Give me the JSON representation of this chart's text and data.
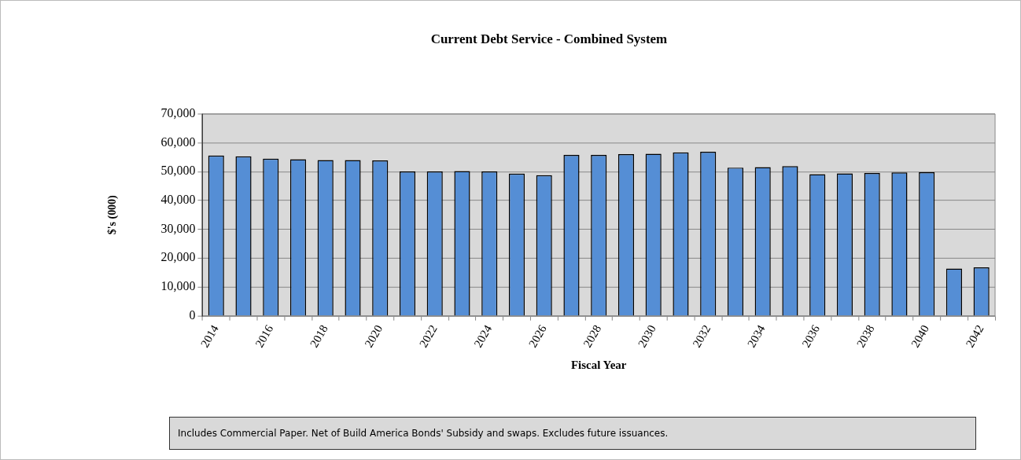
{
  "chart_data": {
    "type": "bar",
    "title": "Current Debt Service - Combined System",
    "xlabel": "Fiscal Year",
    "ylabel": "$'s (000)",
    "categories": [
      "2014",
      null,
      "2016",
      null,
      "2018",
      null,
      "2020",
      null,
      "2022",
      null,
      "2024",
      null,
      "2026",
      null,
      "2028",
      null,
      "2030",
      null,
      "2032",
      null,
      "2034",
      null,
      "2036",
      null,
      "2038",
      null,
      "2040",
      null,
      "2042"
    ],
    "values": [
      55600,
      55300,
      54500,
      54300,
      54000,
      54000,
      53900,
      50100,
      50100,
      50200,
      50100,
      49300,
      48800,
      55800,
      55800,
      56100,
      56200,
      56700,
      56900,
      51400,
      51600,
      51900,
      49100,
      49400,
      49500,
      49700,
      49800,
      16400,
      16800
    ],
    "color": "#558ed5",
    "ylim": [
      0,
      70000
    ],
    "yticks": [
      0,
      {
        "value": 10000,
        "label": "10,000"
      },
      {
        "value": 20000,
        "label": "20,000"
      },
      {
        "value": 30000,
        "label": "30,000"
      },
      {
        "value": 40000,
        "label": "40,000"
      },
      {
        "value": 50000,
        "label": "50,000"
      },
      {
        "value": 60000,
        "label": "60,000"
      },
      {
        "value": 70000,
        "label": "70,000"
      }
    ],
    "grid": "y",
    "annotations": [
      "Includes Commercial Paper. Net of Build America Bonds' Subsidy and swaps. Excludes future issuances."
    ]
  }
}
